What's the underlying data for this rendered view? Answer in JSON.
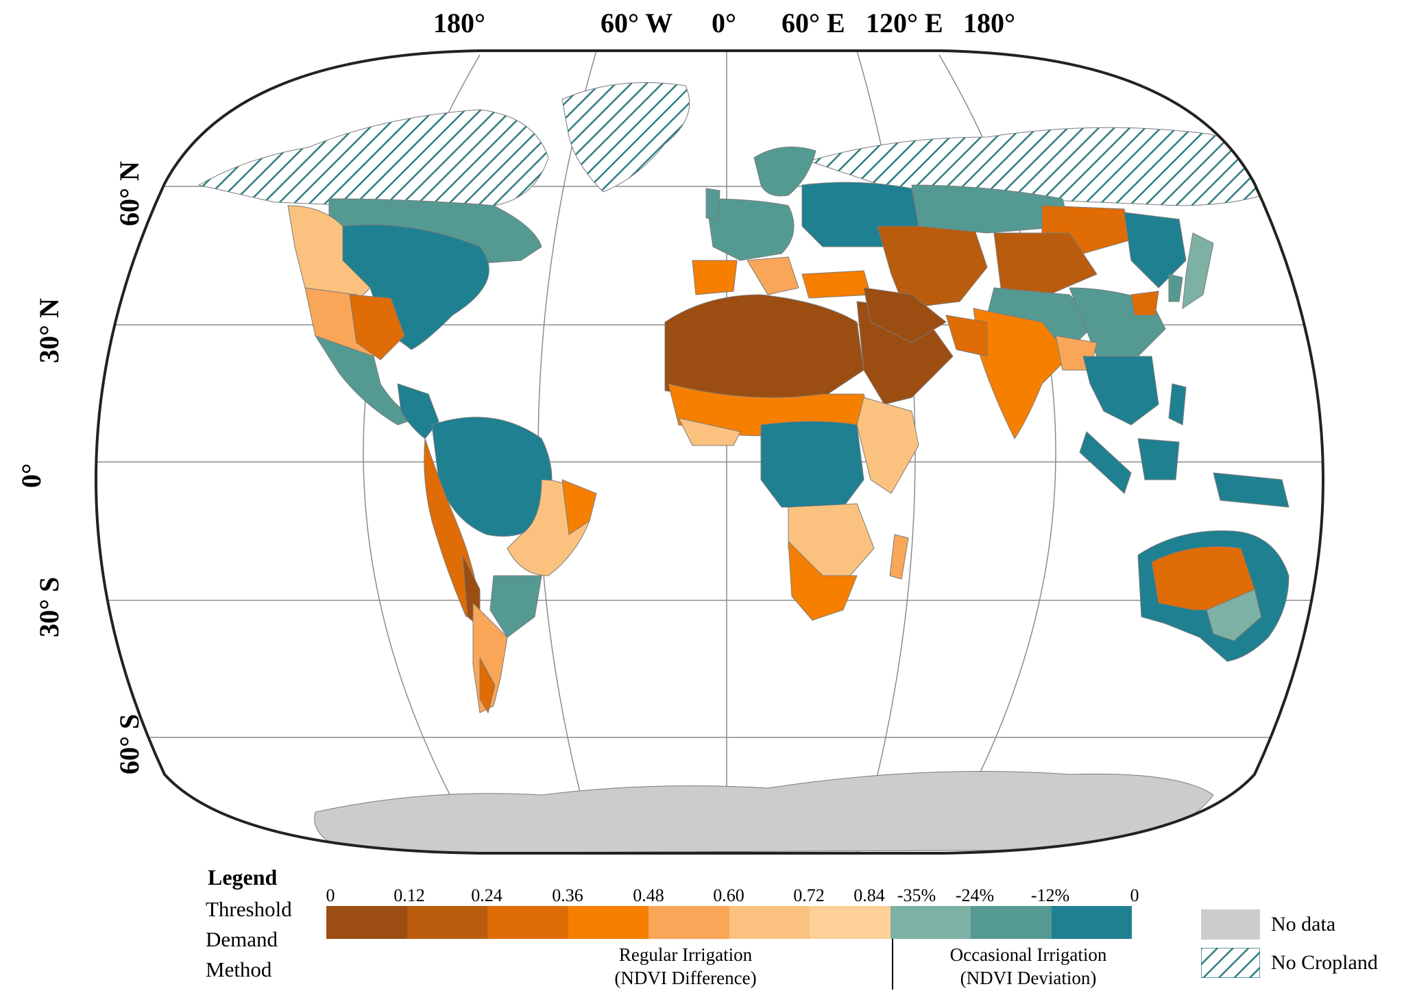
{
  "map": {
    "longitude_labels": [
      "180°",
      "60° W",
      "0°",
      "60° E",
      "120° E",
      "180°"
    ],
    "latitude_labels": [
      "60° N",
      "30° N",
      "0°",
      "30° S",
      "60° S"
    ]
  },
  "legend": {
    "title": "Legend",
    "method_lines": [
      "Threshold",
      "Demand",
      "Method"
    ],
    "tick_labels": [
      "0",
      "0.12",
      "0.24",
      "0.36",
      "0.48",
      "0.60",
      "0.72",
      "0.84",
      "-35%",
      "-24%",
      "-12%",
      "0"
    ],
    "colors": [
      "#9c4d12",
      "#b95c0e",
      "#e06c05",
      "#f77f00",
      "#f9a659",
      "#fbc27f",
      "#fcd096",
      "#7db1a4",
      "#549a93",
      "#1f8091"
    ],
    "regular": {
      "line1": "Regular Irrigation",
      "line2": "(NDVI Difference)"
    },
    "occasional": {
      "line1": "Occasional Irrigation",
      "line2": "(NDVI Deviation)"
    },
    "no_data": {
      "label": "No data",
      "color": "#cccccc"
    },
    "no_cropland": {
      "label": "No Cropland",
      "hatch_color": "#2e7d80"
    }
  }
}
